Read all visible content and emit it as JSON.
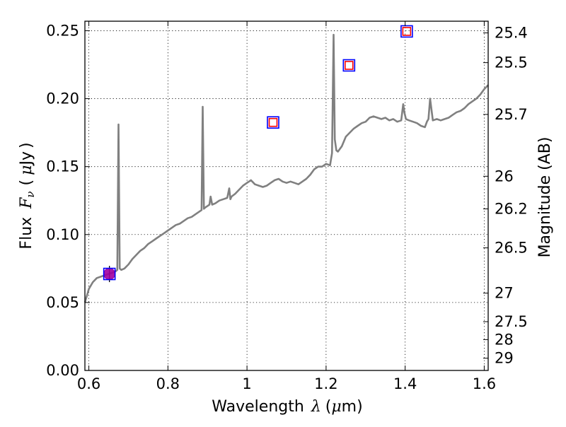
{
  "chart_data": {
    "type": "line",
    "xlabel": "Wavelength",
    "xlabel_symbol": "λ",
    "xlabel_unit_open": "(",
    "xlabel_unit_mu": "μ",
    "xlabel_unit_rest": "m)",
    "ylabel": "Flux",
    "ylabel_symbol": "F",
    "ylabel_sub": "ν",
    "ylabel_unit_open": "(",
    "ylabel_unit_mu": "μ",
    "ylabel_unit_rest": "Jy",
    "ylabel_unit_close": ")",
    "y2label": "Magnitude (AB)",
    "xlim": [
      0.59,
      1.61
    ],
    "ylim": [
      0.0,
      0.257
    ],
    "grid": true,
    "x_ticks": [
      0.6,
      0.8,
      1.0,
      1.2,
      1.4,
      1.6
    ],
    "x_tick_labels": [
      "0.6",
      "0.8",
      "1",
      "1.2",
      "1.4",
      "1.6"
    ],
    "y_ticks": [
      0.0,
      0.05,
      0.1,
      0.15,
      0.2,
      0.25
    ],
    "y_tick_labels": [
      "0.00",
      "0.05",
      "0.10",
      "0.15",
      "0.20",
      "0.25"
    ],
    "y2_ticks": [
      {
        "label": "25.4",
        "flux": 0.2484
      },
      {
        "label": "25.5",
        "flux": 0.2265
      },
      {
        "label": "25.7",
        "flux": 0.1884
      },
      {
        "label": "26",
        "flux": 0.1429
      },
      {
        "label": "26.2",
        "flux": 0.1189
      },
      {
        "label": "26.5",
        "flux": 0.0902
      },
      {
        "label": "27",
        "flux": 0.0569
      },
      {
        "label": "27.5",
        "flux": 0.0359
      },
      {
        "label": "28",
        "flux": 0.0227
      },
      {
        "label": "29",
        "flux": 0.009
      }
    ],
    "series": [
      {
        "type": "line",
        "color": "#808080",
        "x": [
          0.59,
          0.6,
          0.61,
          0.62,
          0.63,
          0.64,
          0.65,
          0.66,
          0.668,
          0.672,
          0.675,
          0.678,
          0.682,
          0.69,
          0.7,
          0.71,
          0.72,
          0.73,
          0.74,
          0.75,
          0.76,
          0.77,
          0.78,
          0.79,
          0.8,
          0.81,
          0.82,
          0.83,
          0.84,
          0.85,
          0.86,
          0.87,
          0.88,
          0.885,
          0.888,
          0.891,
          0.895,
          0.9,
          0.905,
          0.908,
          0.912,
          0.92,
          0.93,
          0.94,
          0.95,
          0.955,
          0.958,
          0.961,
          0.97,
          0.98,
          0.99,
          1.0,
          1.01,
          1.02,
          1.03,
          1.04,
          1.05,
          1.06,
          1.07,
          1.08,
          1.09,
          1.1,
          1.11,
          1.12,
          1.13,
          1.14,
          1.15,
          1.16,
          1.17,
          1.18,
          1.19,
          1.2,
          1.21,
          1.215,
          1.219,
          1.222,
          1.226,
          1.23,
          1.24,
          1.25,
          1.26,
          1.27,
          1.28,
          1.29,
          1.3,
          1.31,
          1.32,
          1.33,
          1.34,
          1.35,
          1.36,
          1.37,
          1.38,
          1.39,
          1.395,
          1.398,
          1.402,
          1.41,
          1.42,
          1.43,
          1.44,
          1.45,
          1.455,
          1.459,
          1.463,
          1.47,
          1.48,
          1.49,
          1.5,
          1.51,
          1.52,
          1.53,
          1.54,
          1.55,
          1.56,
          1.57,
          1.58,
          1.59,
          1.6,
          1.61
        ],
        "y": [
          0.05,
          0.06,
          0.065,
          0.068,
          0.069,
          0.07,
          0.071,
          0.072,
          0.073,
          0.074,
          0.181,
          0.075,
          0.074,
          0.075,
          0.078,
          0.082,
          0.085,
          0.088,
          0.09,
          0.093,
          0.095,
          0.097,
          0.099,
          0.101,
          0.103,
          0.105,
          0.107,
          0.108,
          0.11,
          0.112,
          0.113,
          0.115,
          0.117,
          0.118,
          0.194,
          0.119,
          0.12,
          0.121,
          0.122,
          0.128,
          0.122,
          0.123,
          0.125,
          0.126,
          0.127,
          0.134,
          0.126,
          0.128,
          0.13,
          0.133,
          0.136,
          0.138,
          0.14,
          0.137,
          0.136,
          0.135,
          0.136,
          0.138,
          0.14,
          0.141,
          0.139,
          0.138,
          0.139,
          0.138,
          0.137,
          0.139,
          0.141,
          0.144,
          0.148,
          0.15,
          0.15,
          0.152,
          0.151,
          0.16,
          0.247,
          0.17,
          0.162,
          0.161,
          0.165,
          0.172,
          0.175,
          0.178,
          0.18,
          0.182,
          0.183,
          0.186,
          0.187,
          0.186,
          0.185,
          0.186,
          0.184,
          0.185,
          0.183,
          0.184,
          0.196,
          0.19,
          0.185,
          0.184,
          0.183,
          0.182,
          0.18,
          0.179,
          0.183,
          0.185,
          0.2,
          0.184,
          0.185,
          0.184,
          0.185,
          0.186,
          0.188,
          0.19,
          0.191,
          0.193,
          0.196,
          0.198,
          0.2,
          0.203,
          0.207,
          0.21
        ]
      },
      {
        "type": "measurement",
        "marker": "circle",
        "color": "#a000a0",
        "x": [
          0.652
        ],
        "y": [
          0.071
        ],
        "yerr": [
          0.006
        ]
      },
      {
        "type": "model-photometry",
        "marker": "square",
        "color": "#0000ff",
        "x": [
          0.652,
          1.066,
          1.258,
          1.404
        ],
        "y": [
          0.071,
          0.1825,
          0.2245,
          0.2495
        ]
      },
      {
        "type": "model-photometry",
        "marker": "square",
        "color": "#ff0000",
        "x": [
          1.066,
          1.258,
          1.404
        ],
        "y": [
          0.1825,
          0.2245,
          0.2495
        ]
      }
    ]
  }
}
